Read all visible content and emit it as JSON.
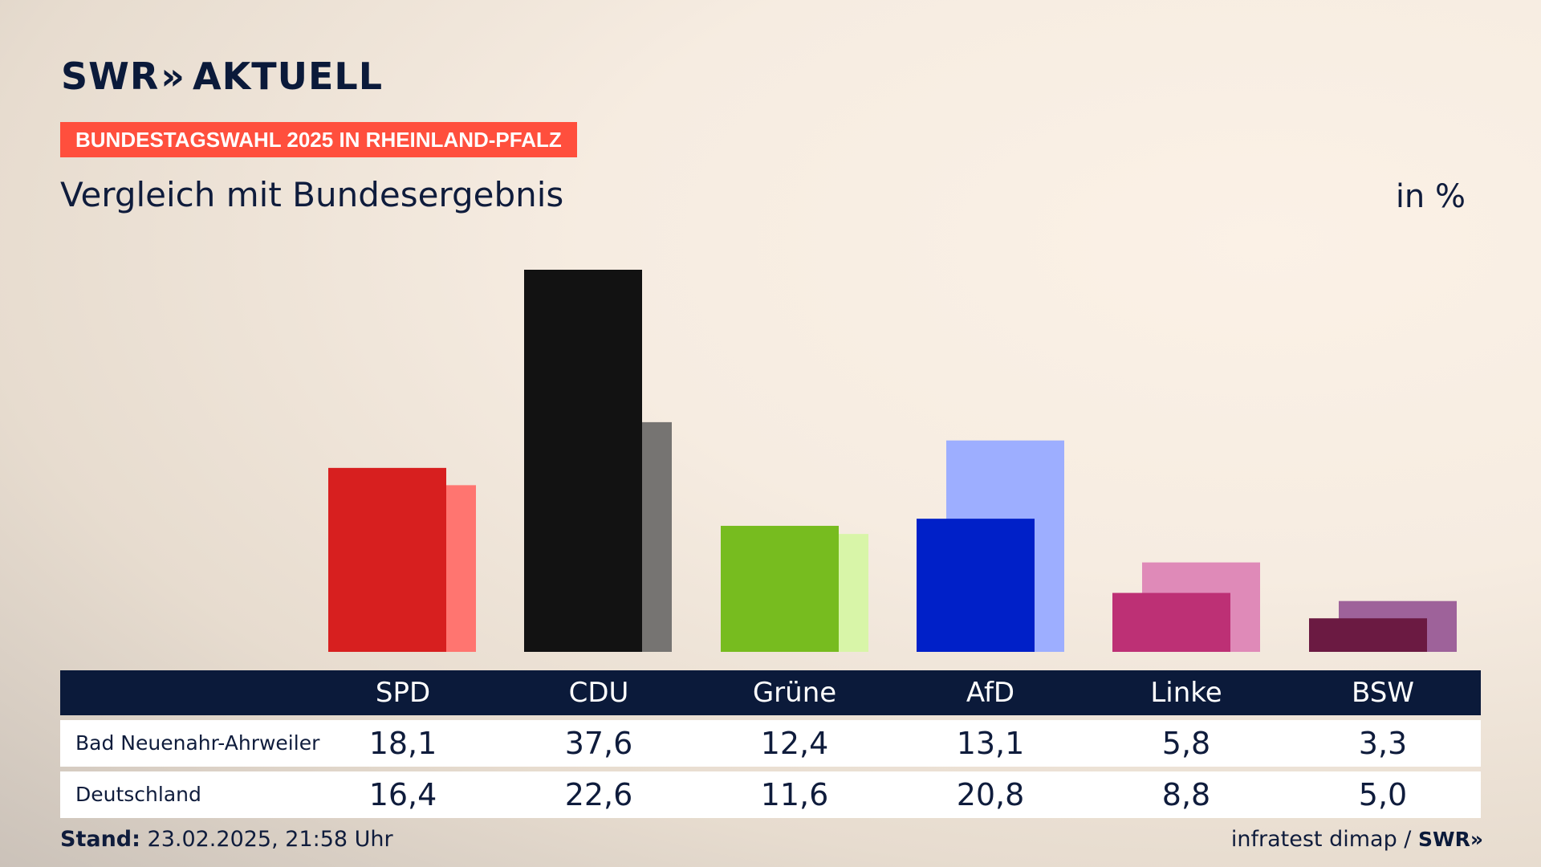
{
  "brand": {
    "name": "SWR",
    "chevrons": "»",
    "product": "AKTUELL"
  },
  "badge": "BUNDESTAGSWAHL 2025 IN RHEINLAND-PFALZ",
  "title": "Vergleich mit Bundesergebnis",
  "unit": "in %",
  "colors": {
    "badge": "#ff4f3d",
    "table_header": "#0b1a3a",
    "SPD": [
      "#d71f1f",
      "#ff7570"
    ],
    "CDU": [
      "#121212",
      "#767472"
    ],
    "Grüne": [
      "#77bc1f",
      "#d8f5a8"
    ],
    "AfD": [
      "#0020c8",
      "#9daeff"
    ],
    "Linke": [
      "#bd3075",
      "#df8ab8"
    ],
    "BSW": [
      "#6b1a42",
      "#9e629a"
    ]
  },
  "chart_data": {
    "type": "bar",
    "categories": [
      "SPD",
      "CDU",
      "Grüne",
      "AfD",
      "Linke",
      "BSW"
    ],
    "series": [
      {
        "name": "Bad Neuenahr-Ahrweiler",
        "values": [
          18.1,
          37.6,
          12.4,
          13.1,
          5.8,
          3.3
        ]
      },
      {
        "name": "Deutschland",
        "values": [
          16.4,
          22.6,
          11.6,
          20.8,
          8.8,
          5.0
        ]
      }
    ],
    "ylim": [
      0,
      37.6
    ],
    "grid": false,
    "legend": "table-below"
  },
  "table": {
    "headers": [
      "SPD",
      "CDU",
      "Grüne",
      "AfD",
      "Linke",
      "BSW"
    ],
    "rows": [
      {
        "label": "Bad Neuenahr-Ahrweiler",
        "values": [
          "18,1",
          "37,6",
          "12,4",
          "13,1",
          "5,8",
          "3,3"
        ]
      },
      {
        "label": "Deutschland",
        "values": [
          "16,4",
          "22,6",
          "11,6",
          "20,8",
          "8,8",
          "5,0"
        ]
      }
    ]
  },
  "footer": {
    "stand_label": "Stand:",
    "stand_value": "23.02.2025, 21:58 Uhr",
    "source": "infratest dimap /",
    "source_brand": "SWR"
  }
}
